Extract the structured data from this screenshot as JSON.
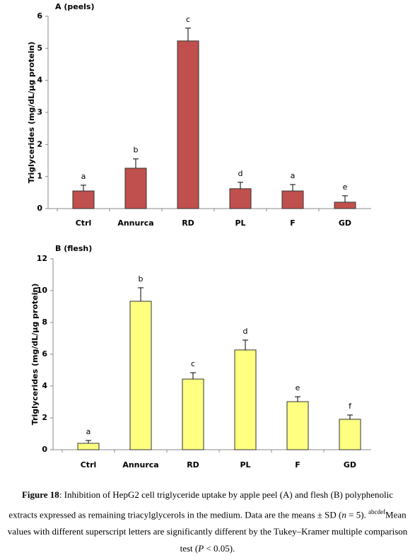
{
  "chart_data": [
    {
      "type": "bar",
      "title": "A (peels)",
      "y_label": "Triglycerides (mg/dL/µg protein)",
      "categories": [
        "Ctrl",
        "Annurca",
        "RD",
        "PL",
        "F",
        "GD"
      ],
      "values": [
        0.55,
        1.26,
        5.23,
        0.62,
        0.55,
        0.2
      ],
      "errors": [
        0.18,
        0.29,
        0.4,
        0.2,
        0.2,
        0.2
      ],
      "letters": [
        "a",
        "b",
        "c",
        "d",
        "a",
        "e"
      ],
      "color": "#c0504d",
      "ylim": [
        0,
        6
      ],
      "yticks": [
        0,
        1,
        2,
        3,
        4,
        5,
        6
      ]
    },
    {
      "type": "bar",
      "title": "B (flesh)",
      "y_label": "Triglycerides (mg/dL/µg protein)",
      "categories": [
        "Ctrl",
        "Annurca",
        "RD",
        "PL",
        "F",
        "GD"
      ],
      "values": [
        0.4,
        9.33,
        4.44,
        6.27,
        3.02,
        1.91
      ],
      "errors": [
        0.18,
        0.85,
        0.4,
        0.62,
        0.31,
        0.27
      ],
      "letters": [
        "a",
        "b",
        "c",
        "d",
        "e",
        "f"
      ],
      "color": "#ffff80",
      "ylim": [
        0,
        12
      ],
      "yticks": [
        0,
        2,
        4,
        6,
        8,
        10,
        12
      ]
    }
  ],
  "caption": {
    "label": "Figure 18",
    "text1": ": Inhibition of HepG2 cell triglyceride uptake by apple peel (A) and flesh (B) polyphenolic extracts expressed as remaining triacylglycerols in the medium. Data are the means ± SD (",
    "n": "n",
    "text2": " = 5). ",
    "sup": "abcdef",
    "text3": "Mean values with different superscript letters are significantly different by the Tukey–Kramer multiple comparison test (",
    "p": "P",
    "text4": " < 0.05)."
  }
}
